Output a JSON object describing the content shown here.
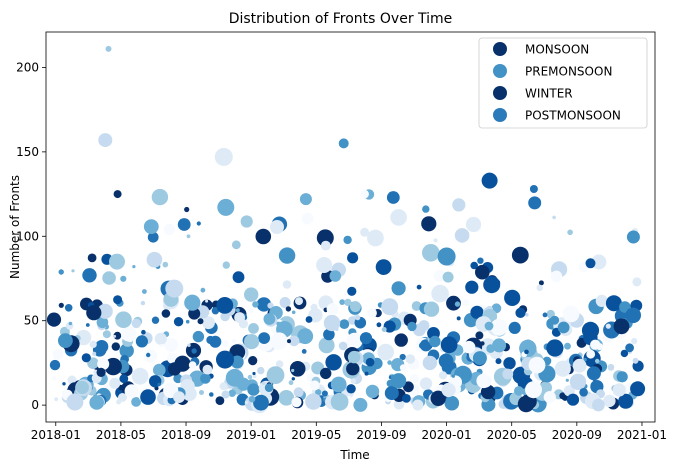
{
  "chart_data": {
    "type": "scatter",
    "title": "Distribution of Fronts Over Time",
    "xlabel": "Time",
    "ylabel": "Number of Fronts",
    "x_ticks": [
      "2018-01",
      "2018-05",
      "2018-09",
      "2019-01",
      "2019-05",
      "2019-09",
      "2020-01",
      "2020-05",
      "2020-09",
      "2021-01"
    ],
    "y_ticks": [
      0,
      50,
      100,
      150,
      200
    ],
    "xlim": [
      -0.15,
      9.2
    ],
    "ylim": [
      -10,
      221
    ],
    "legend": {
      "position": "top-right",
      "entries": [
        {
          "label": "MONSOON",
          "color": "#08306b"
        },
        {
          "label": "PREMONSOON",
          "color": "#4292c6"
        },
        {
          "label": "WINTER",
          "color": "#08306b"
        },
        {
          "label": "POSTMONSOON",
          "color": "#2b7bba"
        }
      ]
    },
    "palette": [
      "#f7fbff",
      "#deebf7",
      "#c6dbef",
      "#9ecae1",
      "#6baed6",
      "#4292c6",
      "#2171b5",
      "#08519c",
      "#08306b"
    ],
    "notable_points": [
      {
        "x": 0.81,
        "y": 211,
        "size": 3
      },
      {
        "x": 0.76,
        "y": 157,
        "size": 7
      },
      {
        "x": 2.58,
        "y": 147,
        "size": 9
      },
      {
        "x": 4.42,
        "y": 155,
        "size": 5
      },
      {
        "x": 6.66,
        "y": 133,
        "size": 8
      },
      {
        "x": 7.34,
        "y": 128,
        "size": 4
      },
      {
        "x": 0.95,
        "y": 125,
        "size": 4
      },
      {
        "x": 3.84,
        "y": 122,
        "size": 6
      },
      {
        "x": 0.94,
        "y": 85,
        "size": 8
      },
      {
        "x": 1.82,
        "y": 69,
        "size": 9
      },
      {
        "x": 4.12,
        "y": 83,
        "size": 8
      },
      {
        "x": 6.0,
        "y": 88,
        "size": 9
      },
      {
        "x": 8.21,
        "y": 84,
        "size": 5
      }
    ],
    "bulk_distribution": {
      "x_range": [
        -0.05,
        8.95
      ],
      "typical_range": [
        0,
        60
      ],
      "sparse_range": [
        60,
        125
      ],
      "count": 700
    }
  }
}
